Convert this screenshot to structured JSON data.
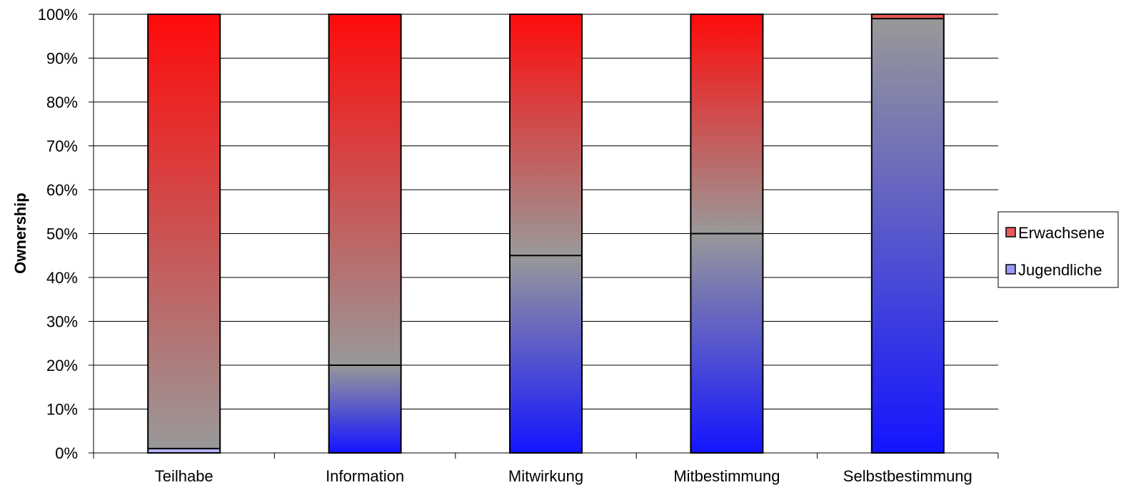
{
  "chart_data": {
    "type": "bar",
    "stacked": true,
    "percent": true,
    "categories": [
      "Teilhabe",
      "Information",
      "Mitwirkung",
      "Mitbestimmung",
      "Selbstbestimmung"
    ],
    "series": [
      {
        "name": "Jugendliche",
        "values": [
          1,
          20,
          45,
          50,
          99
        ],
        "color": "#1414ff"
      },
      {
        "name": "Erwachsene",
        "values": [
          99,
          80,
          55,
          50,
          1
        ],
        "color": "#ff0a0a"
      }
    ],
    "ylabel": "Ownership",
    "ylim": [
      0,
      100
    ],
    "yticks": [
      "0%",
      "10%",
      "20%",
      "30%",
      "40%",
      "50%",
      "60%",
      "70%",
      "80%",
      "90%",
      "100%"
    ],
    "grid": true,
    "legend_position": "right",
    "legend_order": [
      "Erwachsene",
      "Jugendliche"
    ],
    "neutral_color": "#999999"
  }
}
